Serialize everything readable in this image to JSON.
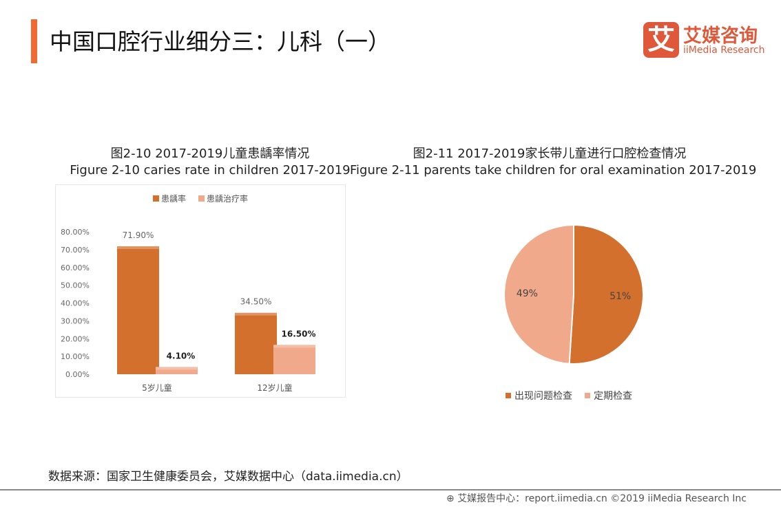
{
  "header": {
    "title": "中国口腔行业细分三：儿科（一）"
  },
  "logo": {
    "mark": "艾",
    "cn": "艾媒咨询",
    "en": "iiMedia Research"
  },
  "colors": {
    "accent": "#f06a35",
    "primary": "#d4702e",
    "secondary": "#f0a98a"
  },
  "chart_data": [
    {
      "type": "bar",
      "title": "图2-10 2017-2019儿童患龋率情况",
      "subtitle": "Figure 2-10 caries rate in children 2017-2019",
      "categories": [
        "5岁儿童",
        "12岁儿童"
      ],
      "series": [
        {
          "name": "患龋率",
          "values": [
            71.9,
            34.5
          ],
          "labels": [
            "71.90%",
            "34.50%"
          ],
          "color": "#d4702e"
        },
        {
          "name": "患龋治疗率",
          "values": [
            4.1,
            16.5
          ],
          "labels": [
            "4.10%",
            "16.50%"
          ],
          "color": "#f0a98a"
        }
      ],
      "ylim": [
        0,
        80
      ],
      "yticks": [
        "0.00%",
        "10.00%",
        "20.00%",
        "30.00%",
        "40.00%",
        "50.00%",
        "60.00%",
        "70.00%",
        "80.00%"
      ],
      "legend": "top",
      "grid": false
    },
    {
      "type": "pie",
      "title": "图2-11 2017-2019家长带儿童进行口腔检查情况",
      "subtitle": "Figure 2-11 parents take children for oral examination 2017-2019",
      "slices": [
        {
          "name": "出现问题检查",
          "value": 51,
          "label": "51%",
          "color": "#d4702e"
        },
        {
          "name": "定期检查",
          "value": 49,
          "label": "49%",
          "color": "#f0a98a"
        }
      ],
      "legend": "bottom"
    }
  ],
  "source": "数据来源：国家卫生健康委员会，艾媒数据中心（data.iimedia.cn）",
  "footer": "艾媒报告中心：report.iimedia.cn  ©2019  iiMedia Research  Inc"
}
